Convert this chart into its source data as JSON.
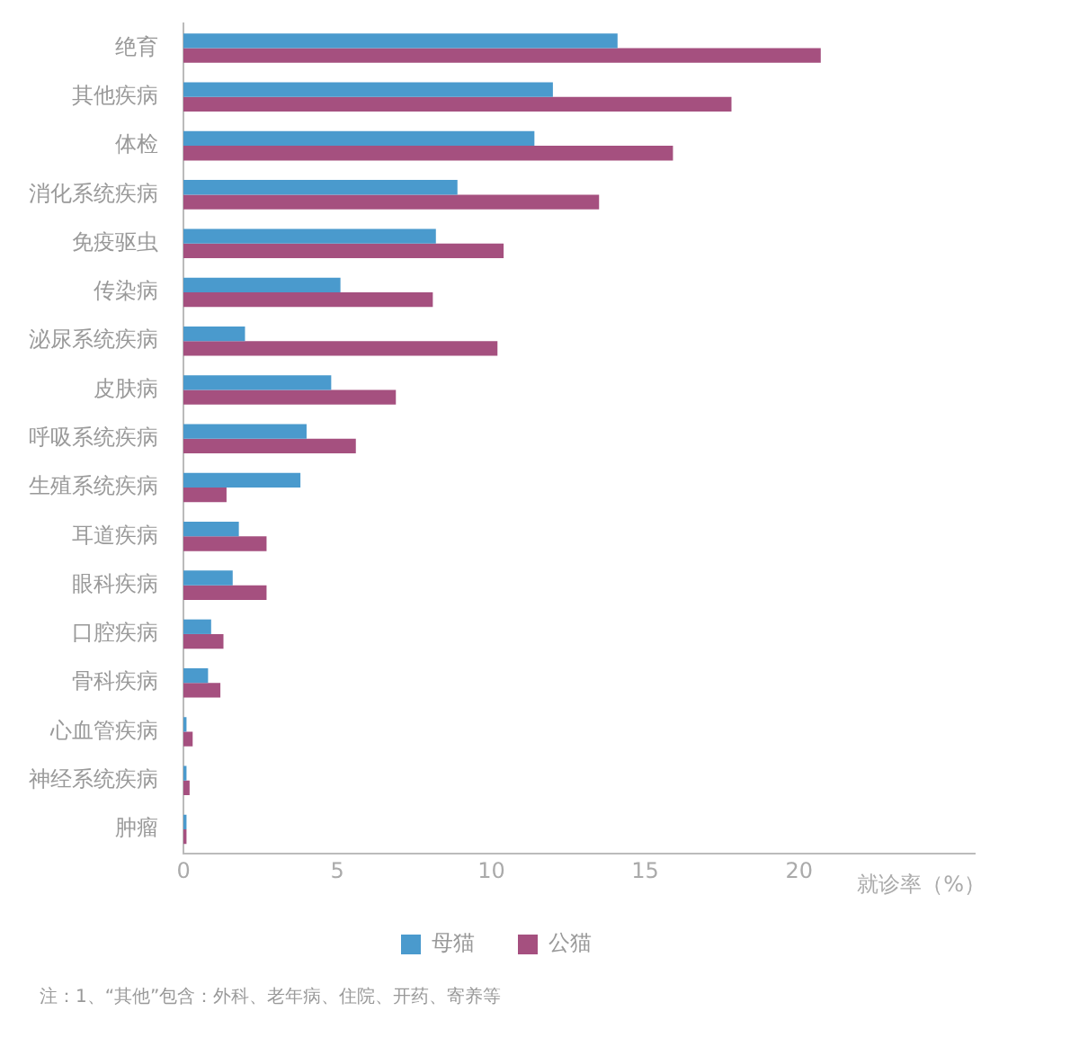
{
  "chart_data": {
    "type": "bar",
    "orientation": "horizontal",
    "xlabel": "就诊率（%）",
    "categories": [
      "绝育",
      "其他疾病",
      "体检",
      "消化系统疾病",
      "免疫驱虫",
      "传染病",
      "泌尿系统疾病",
      "皮肤病",
      "呼吸系统疾病",
      "生殖系统疾病",
      "耳道疾病",
      "眼科疾病",
      "口腔疾病",
      "骨科疾病",
      "心血管疾病",
      "神经系统疾病",
      "肿瘤"
    ],
    "series": [
      {
        "name": "母猫",
        "color": "#4a9acd",
        "values": [
          14.1,
          12.0,
          11.4,
          8.9,
          8.2,
          5.1,
          2.0,
          4.8,
          4.0,
          3.8,
          1.8,
          1.6,
          0.9,
          0.8,
          0.1,
          0.1,
          0.1
        ]
      },
      {
        "name": "公猫",
        "color": "#a5507f",
        "values": [
          20.7,
          17.8,
          15.9,
          13.5,
          10.4,
          8.1,
          10.2,
          6.9,
          5.6,
          1.4,
          2.7,
          2.7,
          1.3,
          1.2,
          0.3,
          0.2,
          0.1
        ]
      }
    ],
    "xlim": [
      0,
      25.7
    ],
    "xticks": [
      0,
      5,
      10,
      15,
      20
    ],
    "grid": false,
    "legend": "bottom",
    "annotations": [
      "注：1、“其他”包含：外科、老年病、住院、开药、寄养等"
    ]
  }
}
